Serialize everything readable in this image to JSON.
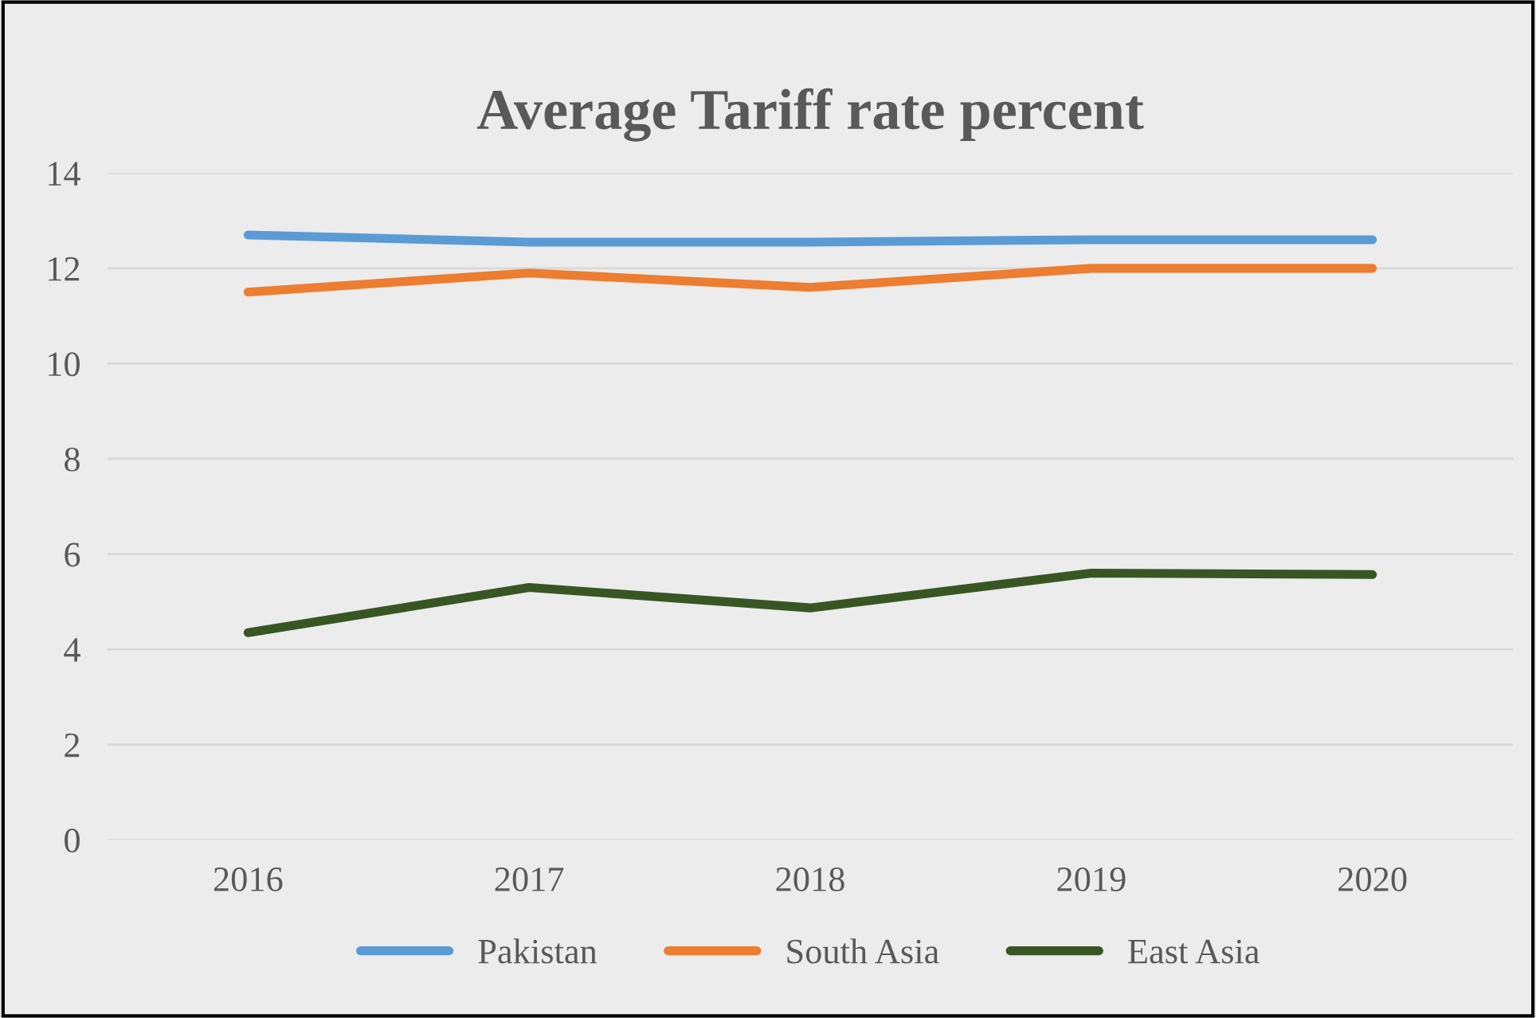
{
  "chart_data": {
    "type": "line",
    "title": "Average Tariff rate percent",
    "categories": [
      "2016",
      "2017",
      "2018",
      "2019",
      "2020"
    ],
    "series": [
      {
        "name": "Pakistan",
        "color": "#5b9bd5",
        "values": [
          12.7,
          12.55,
          12.55,
          12.6,
          12.6
        ]
      },
      {
        "name": "South Asia",
        "color": "#ed7d31",
        "values": [
          11.5,
          11.9,
          11.6,
          12.0,
          12.0
        ]
      },
      {
        "name": "East Asia",
        "color": "#375623",
        "values": [
          4.35,
          5.3,
          4.87,
          5.6,
          5.57
        ]
      }
    ],
    "ylim": [
      0,
      14
    ],
    "yticks": [
      0,
      2,
      4,
      6,
      8,
      10,
      12,
      14
    ],
    "grid": "y",
    "legend": "bottom",
    "marker": "none",
    "line_style": "solid"
  }
}
